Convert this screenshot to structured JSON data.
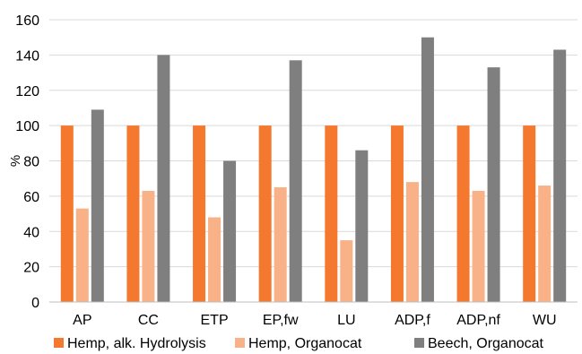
{
  "chart_data": {
    "type": "bar",
    "title": "",
    "xlabel": "",
    "ylabel": "%",
    "ylim": [
      0,
      160
    ],
    "yticks": [
      0,
      20,
      40,
      60,
      80,
      100,
      120,
      140,
      160
    ],
    "grid": true,
    "legend_position": "bottom",
    "categories": [
      "AP",
      "CC",
      "ETP",
      "EP,fw",
      "LU",
      "ADP,f",
      "ADP,nf",
      "WU"
    ],
    "series": [
      {
        "name": "Hemp, alk. Hydrolysis",
        "color": "#F4782E",
        "values": [
          100,
          100,
          100,
          100,
          100,
          100,
          100,
          100
        ]
      },
      {
        "name": "Hemp, Organocat",
        "color": "#F9B187",
        "values": [
          53,
          63,
          48,
          65,
          35,
          68,
          63,
          66
        ]
      },
      {
        "name": "Beech, Organocat",
        "color": "#7F7F7F",
        "values": [
          109,
          140,
          80,
          137,
          86,
          150,
          133,
          143
        ]
      }
    ]
  }
}
